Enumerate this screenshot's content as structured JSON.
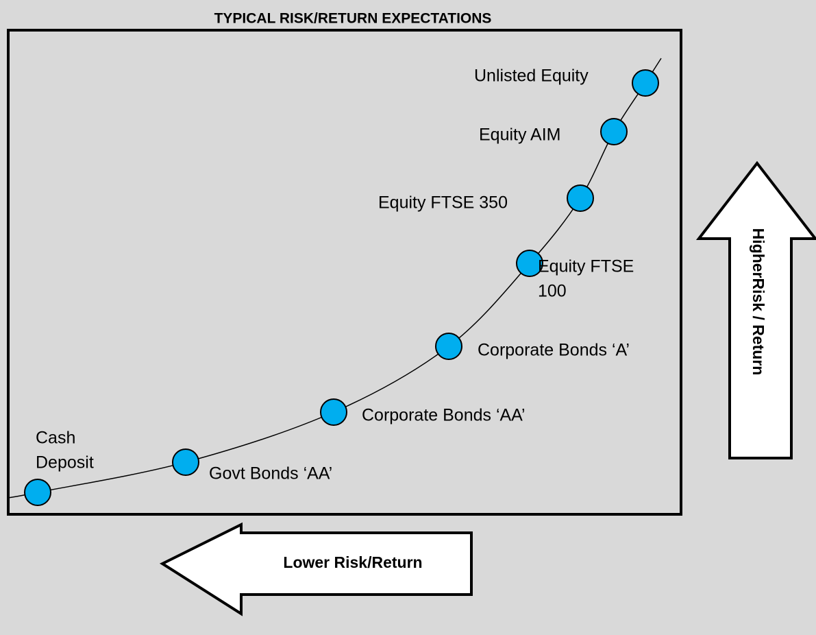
{
  "title": "TYPICAL RISK/RETURN EXPECTATIONS",
  "nodes": [
    {
      "label": [
        "Cash",
        "Deposit"
      ]
    },
    {
      "label": [
        "Govt Bonds ‘AA’"
      ]
    },
    {
      "label": [
        "Corporate Bonds ‘AA’"
      ]
    },
    {
      "label": [
        "Corporate Bonds ‘A’"
      ]
    },
    {
      "label": [
        "Equity FTSE",
        "100"
      ]
    },
    {
      "label": [
        "Equity FTSE 350"
      ]
    },
    {
      "label": [
        "Equity AIM"
      ]
    },
    {
      "label": [
        "Unlisted Equity"
      ]
    }
  ],
  "arrows": {
    "higher": "HigherRisk / Return",
    "lower": "Lower Risk/Return"
  }
}
